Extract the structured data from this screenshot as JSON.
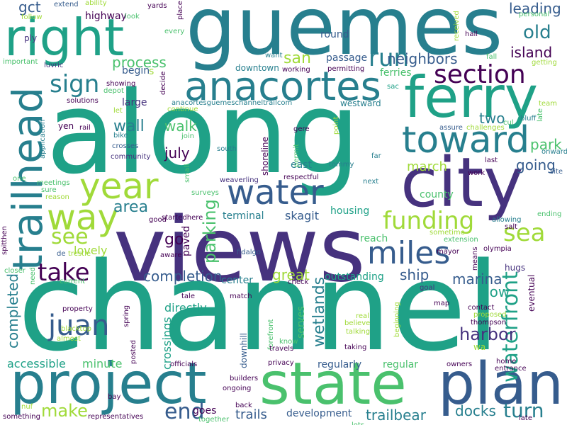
{
  "palette": {
    "dark_purple": "#440154",
    "purple": "#46327e",
    "blue": "#365c8d",
    "teal_blue": "#277f8e",
    "teal": "#1fa187",
    "green": "#4ac16d",
    "lime": "#a0da39",
    "yellow": "#fde725"
  },
  "words": [
    {
      "text": "along",
      "color": "#1fa187"
    },
    {
      "text": "channel",
      "color": "#1fa187"
    },
    {
      "text": "views",
      "color": "#46327e"
    },
    {
      "text": "guemes",
      "color": "#277f8e"
    },
    {
      "text": "state",
      "color": "#4ac16d"
    },
    {
      "text": "plan",
      "color": "#365c8d"
    },
    {
      "text": "project",
      "color": "#277f8e"
    },
    {
      "text": "right",
      "color": "#1fa187"
    },
    {
      "text": "city",
      "color": "#46327e"
    },
    {
      "text": "ferry",
      "color": "#1fa187"
    },
    {
      "text": "anacortes",
      "color": "#277f8e"
    },
    {
      "text": "trailhead",
      "color": "#277f8e"
    },
    {
      "text": "toward",
      "color": "#277f8e"
    },
    {
      "text": "water",
      "color": "#365c8d"
    },
    {
      "text": "year",
      "color": "#a0da39"
    },
    {
      "text": "section",
      "color": "#440154"
    },
    {
      "text": "way",
      "color": "#a0da39"
    },
    {
      "text": "miles",
      "color": "#365c8d"
    },
    {
      "text": "waterfront",
      "color": "#1fa187"
    },
    {
      "text": "juan",
      "color": "#365c8d"
    },
    {
      "text": "funding",
      "color": "#a0da39"
    },
    {
      "text": "sign",
      "color": "#277f8e"
    },
    {
      "text": "run",
      "color": "#277f8e"
    },
    {
      "text": "take",
      "color": "#440154"
    },
    {
      "text": "sea",
      "color": "#a0da39"
    },
    {
      "text": "end",
      "color": "#365c8d"
    },
    {
      "text": "turn",
      "color": "#277f8e"
    },
    {
      "text": "old",
      "color": "#277f8e"
    },
    {
      "text": "gct",
      "color": "#365c8d"
    },
    {
      "text": "see",
      "color": "#a0da39"
    },
    {
      "text": "area",
      "color": "#277f8e"
    },
    {
      "text": "parking",
      "color": "#4ac16d"
    },
    {
      "text": "completed",
      "color": "#277f8e"
    },
    {
      "text": "wetlands",
      "color": "#277f8e"
    },
    {
      "text": "harbor",
      "color": "#46327e"
    },
    {
      "text": "make",
      "color": "#a0da39"
    },
    {
      "text": "san",
      "color": "#a0da39"
    },
    {
      "text": "process",
      "color": "#4ac16d"
    },
    {
      "text": "neighbors",
      "color": "#365c8d"
    },
    {
      "text": "island",
      "color": "#440154"
    },
    {
      "text": "leading",
      "color": "#365c8d"
    },
    {
      "text": "park",
      "color": "#4ac16d"
    },
    {
      "text": "going",
      "color": "#365c8d"
    },
    {
      "text": "march",
      "color": "#a0da39"
    },
    {
      "text": "two",
      "color": "#277f8e"
    },
    {
      "text": "wall",
      "color": "#277f8e"
    },
    {
      "text": "walk",
      "color": "#4ac16d"
    },
    {
      "text": "july",
      "color": "#440154"
    },
    {
      "text": "go",
      "color": "#440154"
    },
    {
      "text": "lovely",
      "color": "#a0da39"
    },
    {
      "text": "completion",
      "color": "#365c8d"
    },
    {
      "text": "great",
      "color": "#a0da39"
    },
    {
      "text": "ship",
      "color": "#365c8d"
    },
    {
      "text": "marina",
      "color": "#365c8d"
    },
    {
      "text": "now",
      "color": "#1fa187"
    },
    {
      "text": "docks",
      "color": "#277f8e"
    },
    {
      "text": "trailbear",
      "color": "#277f8e"
    },
    {
      "text": "trails",
      "color": "#365c8d"
    },
    {
      "text": "minute",
      "color": "#4ac16d"
    },
    {
      "text": "accessible",
      "color": "#1fa187"
    },
    {
      "text": "directly",
      "color": "#1fa187"
    },
    {
      "text": "crossings",
      "color": "#1fa187"
    },
    {
      "text": "housing",
      "color": "#1fa187"
    },
    {
      "text": "skagit",
      "color": "#365c8d"
    },
    {
      "text": "terminal",
      "color": "#277f8e"
    },
    {
      "text": "outstanding",
      "color": "#1fa187"
    },
    {
      "text": "center",
      "color": "#277f8e"
    },
    {
      "text": "regularly",
      "color": "#365c8d"
    },
    {
      "text": "regular",
      "color": "#4ac16d"
    },
    {
      "text": "development",
      "color": "#365c8d"
    },
    {
      "text": "goes",
      "color": "#440154"
    },
    {
      "text": "begin",
      "color": "#365c8d"
    },
    {
      "text": "downtown",
      "color": "#277f8e"
    },
    {
      "text": "passage",
      "color": "#365c8d"
    },
    {
      "text": "round",
      "color": "#365c8d"
    },
    {
      "text": "highway",
      "color": "#440154"
    },
    {
      "text": "ferries",
      "color": "#4ac16d"
    },
    {
      "text": "westward",
      "color": "#277f8e"
    },
    {
      "text": "county",
      "color": "#4ac16d"
    },
    {
      "text": "reach",
      "color": "#4ac16d"
    },
    {
      "text": "paved",
      "color": "#440154"
    },
    {
      "text": "large",
      "color": "#46327e"
    },
    {
      "text": "east",
      "color": "#277f8e"
    },
    {
      "text": "shoreline",
      "color": "#440154"
    },
    {
      "text": "downhill",
      "color": "#365c8d"
    },
    {
      "text": "serves",
      "color": "#4ac16d"
    },
    {
      "text": "eventual",
      "color": "#440154"
    },
    {
      "text": "hugs",
      "color": "#46327e"
    },
    {
      "text": "wa",
      "color": "#a0da39"
    },
    {
      "text": "yen",
      "color": "#440154"
    },
    {
      "text": "s",
      "color": "#a0da39"
    },
    {
      "text": "extend",
      "color": "#365c8d"
    },
    {
      "text": "ability",
      "color": "#a0da39"
    },
    {
      "text": "look",
      "color": "#4ac16d"
    },
    {
      "text": "yards",
      "color": "#440154"
    },
    {
      "text": "place",
      "color": "#440154"
    },
    {
      "text": "every",
      "color": "#4ac16d"
    },
    {
      "text": "personal",
      "color": "#4ac16d"
    },
    {
      "text": "follow",
      "color": "#a0da39"
    },
    {
      "text": "hall",
      "color": "#440154"
    },
    {
      "text": "received",
      "color": "#a0da39"
    },
    {
      "text": "fall",
      "color": "#4ac16d"
    },
    {
      "text": "ply",
      "color": "#46327e"
    },
    {
      "text": "important",
      "color": "#4ac16d"
    },
    {
      "text": "luvric",
      "color": "#46327e"
    },
    {
      "text": "want",
      "color": "#277f8e"
    },
    {
      "text": "working",
      "color": "#440154"
    },
    {
      "text": "permitting",
      "color": "#440154"
    },
    {
      "text": "getting",
      "color": "#a0da39"
    },
    {
      "text": "depot",
      "color": "#4ac16d"
    },
    {
      "text": "showing",
      "color": "#440154"
    },
    {
      "text": "decide",
      "color": "#440154"
    },
    {
      "text": "sac",
      "color": "#1fa187"
    },
    {
      "text": "solutions",
      "color": "#440154"
    },
    {
      "text": "anacortesguemeschanneltrailcom",
      "color": "#277f8e"
    },
    {
      "text": "team",
      "color": "#a0da39"
    },
    {
      "text": "let",
      "color": "#a0da39"
    },
    {
      "text": "continue",
      "color": "#a0da39"
    },
    {
      "text": "gere",
      "color": "#440154"
    },
    {
      "text": "point",
      "color": "#a0da39"
    },
    {
      "text": "cul",
      "color": "#4ac16d"
    },
    {
      "text": "assure",
      "color": "#365c8d"
    },
    {
      "text": "challenges",
      "color": "#a0da39"
    },
    {
      "text": "late",
      "color": "#4ac16d"
    },
    {
      "text": "bluff",
      "color": "#277f8e"
    },
    {
      "text": "rail",
      "color": "#440154"
    },
    {
      "text": "application",
      "color": "#277f8e"
    },
    {
      "text": "join",
      "color": "#4ac16d"
    },
    {
      "text": "bike",
      "color": "#277f8e"
    },
    {
      "text": "crosses",
      "color": "#365c8d"
    },
    {
      "text": "onward",
      "color": "#277f8e"
    },
    {
      "text": "south",
      "color": "#277f8e"
    },
    {
      "text": "permit",
      "color": "#4ac16d"
    },
    {
      "text": "far",
      "color": "#277f8e"
    },
    {
      "text": "community",
      "color": "#46327e"
    },
    {
      "text": "tommy",
      "color": "#277f8e"
    },
    {
      "text": "last",
      "color": "#440154"
    },
    {
      "text": "site",
      "color": "#365c8d"
    },
    {
      "text": "work",
      "color": "#440154"
    },
    {
      "text": "meetings",
      "color": "#4ac16d"
    },
    {
      "text": "one",
      "color": "#4ac16d"
    },
    {
      "text": "small",
      "color": "#4ac16d"
    },
    {
      "text": "weaverling",
      "color": "#46327e"
    },
    {
      "text": "respectful",
      "color": "#440154"
    },
    {
      "text": "next",
      "color": "#277f8e"
    },
    {
      "text": "sure",
      "color": "#4ac16d"
    },
    {
      "text": "reason",
      "color": "#a0da39"
    },
    {
      "text": "surveys",
      "color": "#4ac16d"
    },
    {
      "text": "startedhere",
      "color": "#440154"
    },
    {
      "text": "allowing",
      "color": "#277f8e"
    },
    {
      "text": "salt",
      "color": "#440154"
    },
    {
      "text": "ending",
      "color": "#4ac16d"
    },
    {
      "text": "good",
      "color": "#440154"
    },
    {
      "text": "spitthen",
      "color": "#440154"
    },
    {
      "text": "sometime",
      "color": "#a0da39"
    },
    {
      "text": "extension",
      "color": "#4ac16d"
    },
    {
      "text": "mayor",
      "color": "#440154"
    },
    {
      "text": "means",
      "color": "#440154"
    },
    {
      "text": "olympia",
      "color": "#440154"
    },
    {
      "text": "de",
      "color": "#365c8d"
    },
    {
      "text": "trestle",
      "color": "#a0da39"
    },
    {
      "text": "aware",
      "color": "#440154"
    },
    {
      "text": "fidalgo",
      "color": "#365c8d"
    },
    {
      "text": "closer",
      "color": "#4ac16d"
    },
    {
      "text": "need",
      "color": "#4ac16d"
    },
    {
      "text": "current",
      "color": "#4ac16d"
    },
    {
      "text": "tale",
      "color": "#440154"
    },
    {
      "text": "check",
      "color": "#440154"
    },
    {
      "text": "goal",
      "color": "#46327e"
    },
    {
      "text": "property",
      "color": "#440154"
    },
    {
      "text": "match",
      "color": "#440154"
    },
    {
      "text": "map",
      "color": "#440154"
    },
    {
      "text": "contact",
      "color": "#440154"
    },
    {
      "text": "proposed",
      "color": "#a0da39"
    },
    {
      "text": "thompson",
      "color": "#440154"
    },
    {
      "text": "blacktop",
      "color": "#a0da39"
    },
    {
      "text": "almost",
      "color": "#a0da39"
    },
    {
      "text": "spring",
      "color": "#440154"
    },
    {
      "text": "forefront",
      "color": "#4ac16d"
    },
    {
      "text": "real",
      "color": "#a0da39"
    },
    {
      "text": "believe",
      "color": "#a0da39"
    },
    {
      "text": "talking",
      "color": "#a0da39"
    },
    {
      "text": "beginning",
      "color": "#a0da39"
    },
    {
      "text": "know",
      "color": "#4ac16d"
    },
    {
      "text": "travels",
      "color": "#440154"
    },
    {
      "text": "taking",
      "color": "#440154"
    },
    {
      "text": "posted",
      "color": "#440154"
    },
    {
      "text": "officials",
      "color": "#440154"
    },
    {
      "text": "privacy",
      "color": "#440154"
    },
    {
      "text": "owners",
      "color": "#440154"
    },
    {
      "text": "home",
      "color": "#440154"
    },
    {
      "text": "entrance",
      "color": "#440154"
    },
    {
      "text": "late",
      "color": "#440154"
    },
    {
      "text": "builders",
      "color": "#440154"
    },
    {
      "text": "ongoing",
      "color": "#440154"
    },
    {
      "text": "bay",
      "color": "#440154"
    },
    {
      "text": "nuf",
      "color": "#a0da39"
    },
    {
      "text": "something",
      "color": "#440154"
    },
    {
      "text": "representatives",
      "color": "#440154"
    },
    {
      "text": "together",
      "color": "#4ac16d"
    },
    {
      "text": "back",
      "color": "#440154"
    },
    {
      "text": "lots",
      "color": "#4ac16d"
    }
  ]
}
